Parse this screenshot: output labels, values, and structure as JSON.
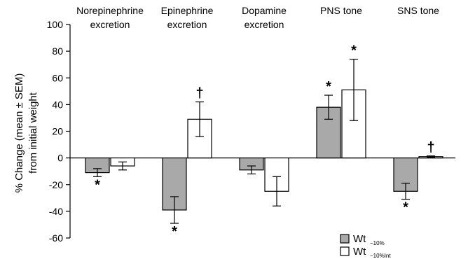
{
  "chart_data": {
    "type": "bar",
    "ylabel_line1": "% Change (mean ± SEM)",
    "ylabel_line2": "from initial weight",
    "ylim": [
      -60,
      100
    ],
    "yticks": [
      -60,
      -40,
      -20,
      0,
      20,
      40,
      60,
      80,
      100
    ],
    "categories": [
      [
        "Norepinephrine",
        "excretion"
      ],
      [
        "Epinephrine",
        "excretion"
      ],
      [
        "Dopamine",
        "excretion"
      ],
      [
        "PNS tone"
      ],
      [
        "SNS tone"
      ]
    ],
    "series": [
      {
        "legend_main": "Wt",
        "legend_sub": "−10%",
        "color": "#a9a9a9",
        "values": [
          -11,
          -39,
          -9,
          38,
          -25
        ],
        "errors": [
          3,
          10,
          3,
          9,
          6
        ],
        "markers": [
          "*",
          "*",
          "",
          "*",
          "*"
        ]
      },
      {
        "legend_main": "Wt",
        "legend_sub": "−10%Int",
        "color": "#ffffff",
        "values": [
          -6,
          29,
          -25,
          51,
          1
        ],
        "errors": [
          3,
          13,
          11,
          23,
          0.5
        ],
        "markers": [
          "",
          "†",
          "",
          "*",
          "†"
        ]
      }
    ],
    "grid": false,
    "legend_position": "bottom-right"
  }
}
